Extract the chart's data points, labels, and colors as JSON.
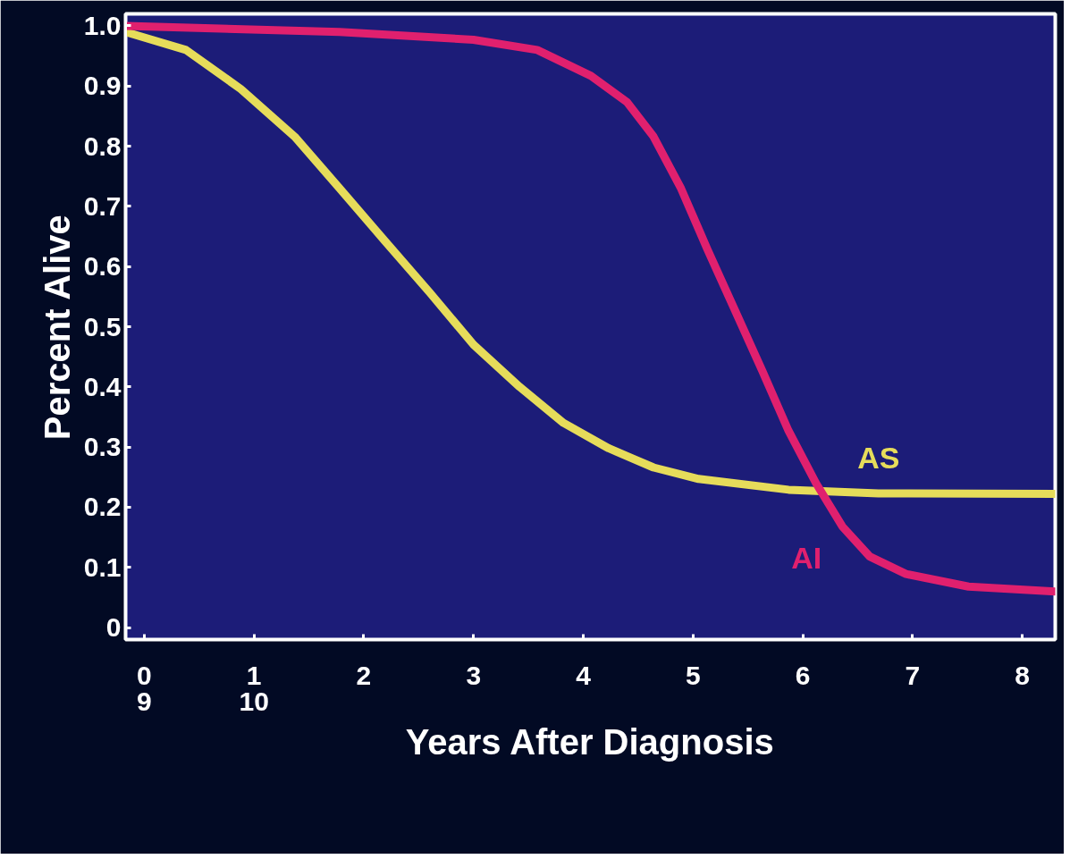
{
  "chart_data": {
    "type": "line",
    "xlabel": "Years After Diagnosis",
    "ylabel": "Percent Alive",
    "xlim": [
      -0.17,
      8.3
    ],
    "ylim": [
      -0.02,
      1.02
    ],
    "xticks": [
      0,
      1,
      2,
      3,
      4,
      5,
      6,
      7,
      8
    ],
    "yticks": [
      {
        "value": 0,
        "label": "0"
      },
      {
        "value": 0.1,
        "label": "0.1"
      },
      {
        "value": 0.2,
        "label": "0.2"
      },
      {
        "value": 0.3,
        "label": "0.3"
      },
      {
        "value": 0.4,
        "label": "0.4"
      },
      {
        "value": 0.5,
        "label": "0.5"
      },
      {
        "value": 0.6,
        "label": "0.6"
      },
      {
        "value": 0.7,
        "label": "0.7"
      },
      {
        "value": 0.8,
        "label": "0.8"
      },
      {
        "value": 0.9,
        "label": "0.9"
      },
      {
        "value": 1.0,
        "label": "1.0"
      }
    ],
    "grid": false,
    "annotations": [
      "9",
      "10"
    ],
    "series": [
      {
        "name": "AS",
        "color": "#e6dc5a",
        "x": [
          -0.17,
          0.38,
          0.88,
          1.37,
          1.78,
          2.19,
          2.6,
          3.0,
          3.42,
          3.82,
          4.23,
          4.64,
          5.05,
          5.87,
          6.69,
          8.3
        ],
        "values": [
          0.99,
          0.96,
          0.895,
          0.816,
          0.73,
          0.643,
          0.557,
          0.47,
          0.4,
          0.34,
          0.298,
          0.266,
          0.247,
          0.229,
          0.223,
          0.222
        ]
      },
      {
        "name": "AI",
        "color": "#e0206e",
        "x": [
          -0.17,
          1.78,
          3.0,
          3.58,
          4.07,
          4.4,
          4.64,
          4.89,
          5.13,
          5.38,
          5.63,
          5.87,
          6.12,
          6.36,
          6.61,
          6.94,
          7.51,
          8.3
        ],
        "values": [
          1.0,
          0.99,
          0.977,
          0.96,
          0.917,
          0.873,
          0.816,
          0.73,
          0.629,
          0.528,
          0.427,
          0.327,
          0.24,
          0.168,
          0.118,
          0.089,
          0.068,
          0.06
        ]
      }
    ]
  }
}
